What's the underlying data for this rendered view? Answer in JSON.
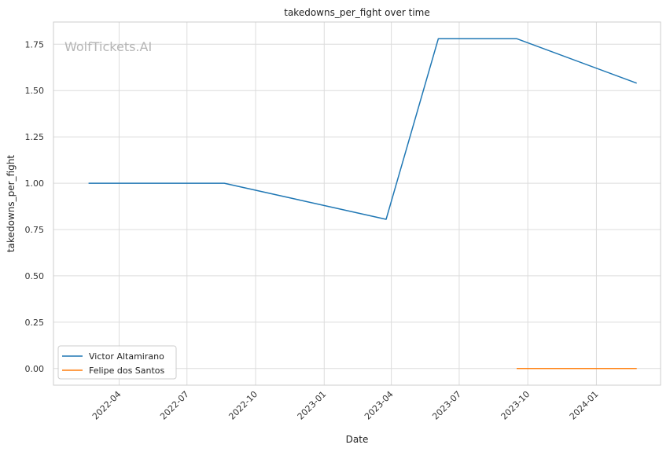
{
  "watermark": "WolfTickets.AI",
  "chart_data": {
    "type": "line",
    "title": "takedowns_per_fight over time",
    "xlabel": "Date",
    "ylabel": "takedowns_per_fight",
    "x_ticks": [
      "2022-04",
      "2022-07",
      "2022-10",
      "2023-01",
      "2023-04",
      "2023-07",
      "2023-10",
      "2024-01"
    ],
    "y_ticks": [
      "0.00",
      "0.25",
      "0.50",
      "0.75",
      "1.00",
      "1.25",
      "1.50",
      "1.75"
    ],
    "xlim": [
      "2022-01-03",
      "2024-03-27"
    ],
    "ylim": [
      -0.09,
      1.87
    ],
    "grid": true,
    "legend_position": "lower-left",
    "series": [
      {
        "name": "Victor Altamirano",
        "color": "#1f77b4",
        "points": [
          {
            "x": "2022-02-19",
            "y": 1.0
          },
          {
            "x": "2022-08-20",
            "y": 1.0
          },
          {
            "x": "2023-03-25",
            "y": 0.805
          },
          {
            "x": "2023-06-03",
            "y": 1.78
          },
          {
            "x": "2023-09-16",
            "y": 1.78
          },
          {
            "x": "2024-02-24",
            "y": 1.54
          }
        ]
      },
      {
        "name": "Felipe dos Santos",
        "color": "#ff7f0e",
        "points": [
          {
            "x": "2023-09-16",
            "y": 0.0
          },
          {
            "x": "2024-02-24",
            "y": 0.0
          }
        ]
      }
    ]
  }
}
